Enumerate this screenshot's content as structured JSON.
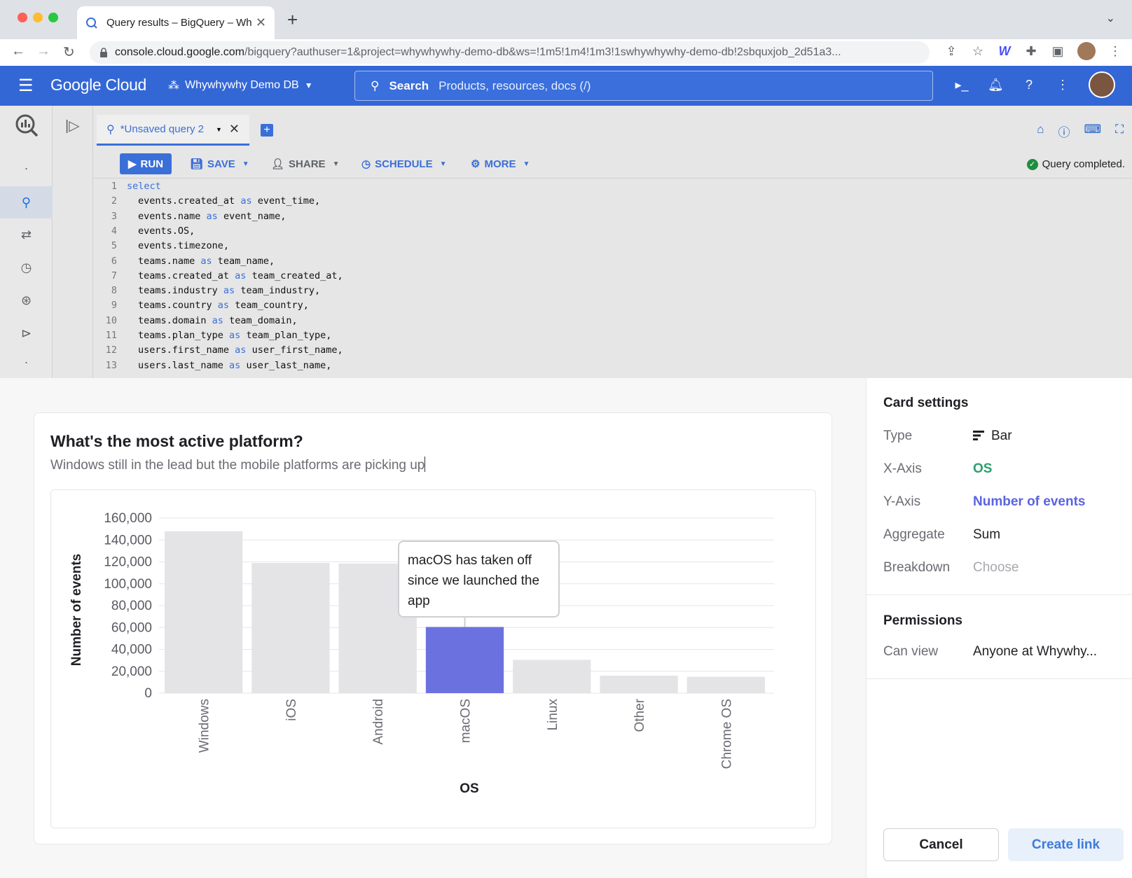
{
  "browser": {
    "tab_title": "Query results – BigQuery – Wh",
    "url_host": "console.cloud.google.com",
    "url_path": "/bigquery?authuser=1&project=whywhywhy-demo-db&ws=!1m5!1m4!1m3!1swhywhywhy-demo-db!2sbquxjob_2d51a3..."
  },
  "header": {
    "logo": "Google Cloud",
    "project": "Whywhywhy Demo DB",
    "search_label": "Search",
    "search_placeholder": "Products, resources, docs (/)"
  },
  "bigquery": {
    "query_tab": "*Unsaved query 2",
    "toolbar": {
      "run": "RUN",
      "save": "SAVE",
      "share": "SHARE",
      "schedule": "SCHEDULE",
      "more": "MORE"
    },
    "status": "Query completed.",
    "code_lines": [
      {
        "n": "1",
        "pre": "select",
        "kw": "",
        "post": "",
        "indent": false,
        "kw_line": true
      },
      {
        "n": "2",
        "pre": "events.created_at ",
        "kw": "as",
        "post": " event_time,",
        "indent": true
      },
      {
        "n": "3",
        "pre": "events.name ",
        "kw": "as",
        "post": " event_name,",
        "indent": true
      },
      {
        "n": "4",
        "pre": "events.OS,",
        "kw": "",
        "post": "",
        "indent": true
      },
      {
        "n": "5",
        "pre": "events.timezone,",
        "kw": "",
        "post": "",
        "indent": true
      },
      {
        "n": "6",
        "pre": "teams.name ",
        "kw": "as",
        "post": " team_name,",
        "indent": true
      },
      {
        "n": "7",
        "pre": "teams.created_at ",
        "kw": "as",
        "post": " team_created_at,",
        "indent": true
      },
      {
        "n": "8",
        "pre": "teams.industry ",
        "kw": "as",
        "post": " team_industry,",
        "indent": true
      },
      {
        "n": "9",
        "pre": "teams.country ",
        "kw": "as",
        "post": " team_country,",
        "indent": true
      },
      {
        "n": "10",
        "pre": "teams.domain ",
        "kw": "as",
        "post": " team_domain,",
        "indent": true
      },
      {
        "n": "11",
        "pre": "teams.plan_type ",
        "kw": "as",
        "post": " team_plan_type,",
        "indent": true
      },
      {
        "n": "12",
        "pre": "users.first_name ",
        "kw": "as",
        "post": " user_first_name,",
        "indent": true
      },
      {
        "n": "13",
        "pre": "users.last_name ",
        "kw": "as",
        "post": " user_last_name,",
        "indent": true
      }
    ]
  },
  "card": {
    "title": "What's the most active platform?",
    "subtitle": "Windows still in the lead but the mobile platforms are picking up",
    "annotation": "macOS has taken off since we launched the app"
  },
  "chart_data": {
    "type": "bar",
    "categories": [
      "Windows",
      "iOS",
      "Android",
      "macOS",
      "Linux",
      "Other",
      "Chrome OS"
    ],
    "values": [
      148000,
      119000,
      118500,
      60500,
      30500,
      16000,
      15000
    ],
    "highlight": "macOS",
    "xlabel": "OS",
    "ylabel": "Number of events",
    "ylim": [
      0,
      160000
    ],
    "yticks": [
      "0",
      "20,000",
      "40,000",
      "60,000",
      "80,000",
      "100,000",
      "120,000",
      "140,000",
      "160,000"
    ],
    "colors": {
      "default": "#e4e4e6",
      "highlight": "#6b72e0"
    }
  },
  "settings": {
    "heading": "Card settings",
    "type_label": "Type",
    "type_value": "Bar",
    "x_label": "X-Axis",
    "x_value": "OS",
    "y_label": "Y-Axis",
    "y_value": "Number of events",
    "agg_label": "Aggregate",
    "agg_value": "Sum",
    "breakdown_label": "Breakdown",
    "breakdown_value": "Choose",
    "permissions_heading": "Permissions",
    "can_view_label": "Can view",
    "can_view_value": "Anyone at Whywhy..."
  },
  "actions": {
    "cancel": "Cancel",
    "create": "Create link"
  }
}
